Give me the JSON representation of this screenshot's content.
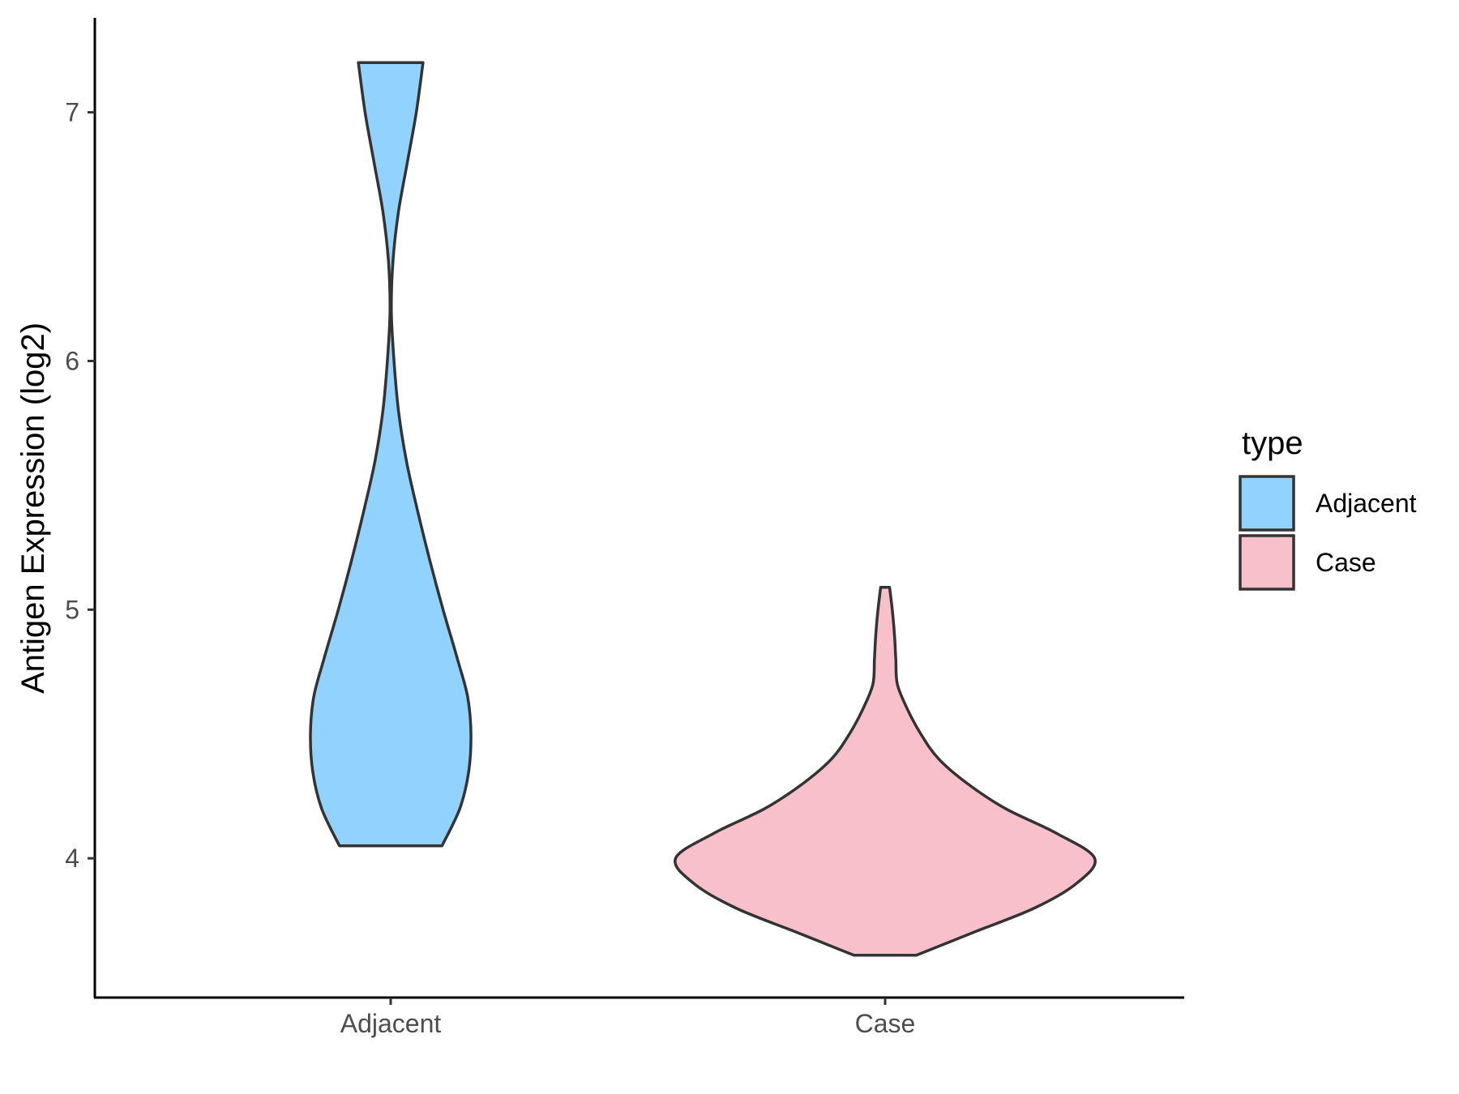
{
  "chart_data": {
    "type": "violin",
    "xlabel": "",
    "ylabel": "Antigen Expression (log2)",
    "ylim": [
      3.44,
      7.38
    ],
    "yticks": [
      4,
      5,
      6,
      7
    ],
    "categories": [
      "Adjacent",
      "Case"
    ],
    "grid": false,
    "legend": {
      "title": "type",
      "position": "right",
      "entries": [
        {
          "label": "Adjacent",
          "color": "#92d2fe"
        },
        {
          "label": "Case",
          "color": "#f7c0cb"
        }
      ]
    },
    "series": [
      {
        "name": "Adjacent",
        "color": "#92d2fe",
        "min": 4.05,
        "max": 7.2,
        "density_profile": [
          [
            4.05,
            0.23
          ],
          [
            4.2,
            0.31
          ],
          [
            4.35,
            0.35
          ],
          [
            4.5,
            0.36
          ],
          [
            4.65,
            0.345
          ],
          [
            4.8,
            0.3
          ],
          [
            5.0,
            0.235
          ],
          [
            5.2,
            0.175
          ],
          [
            5.4,
            0.12
          ],
          [
            5.6,
            0.07
          ],
          [
            5.8,
            0.035
          ],
          [
            6.0,
            0.015
          ],
          [
            6.2,
            0.003
          ],
          [
            6.4,
            0.01
          ],
          [
            6.6,
            0.035
          ],
          [
            6.8,
            0.075
          ],
          [
            7.0,
            0.115
          ],
          [
            7.2,
            0.145
          ]
        ]
      },
      {
        "name": "Case",
        "color": "#f7c0cb",
        "min": 3.61,
        "max": 5.09,
        "density_profile": [
          [
            3.61,
            0.14
          ],
          [
            3.7,
            0.39
          ],
          [
            3.8,
            0.67
          ],
          [
            3.9,
            0.86
          ],
          [
            4.0,
            0.94
          ],
          [
            4.1,
            0.77
          ],
          [
            4.2,
            0.54
          ],
          [
            4.3,
            0.37
          ],
          [
            4.4,
            0.24
          ],
          [
            4.5,
            0.16
          ],
          [
            4.6,
            0.1
          ],
          [
            4.7,
            0.055
          ],
          [
            4.8,
            0.048
          ],
          [
            4.9,
            0.042
          ],
          [
            5.0,
            0.032
          ],
          [
            5.09,
            0.02
          ]
        ]
      }
    ]
  }
}
